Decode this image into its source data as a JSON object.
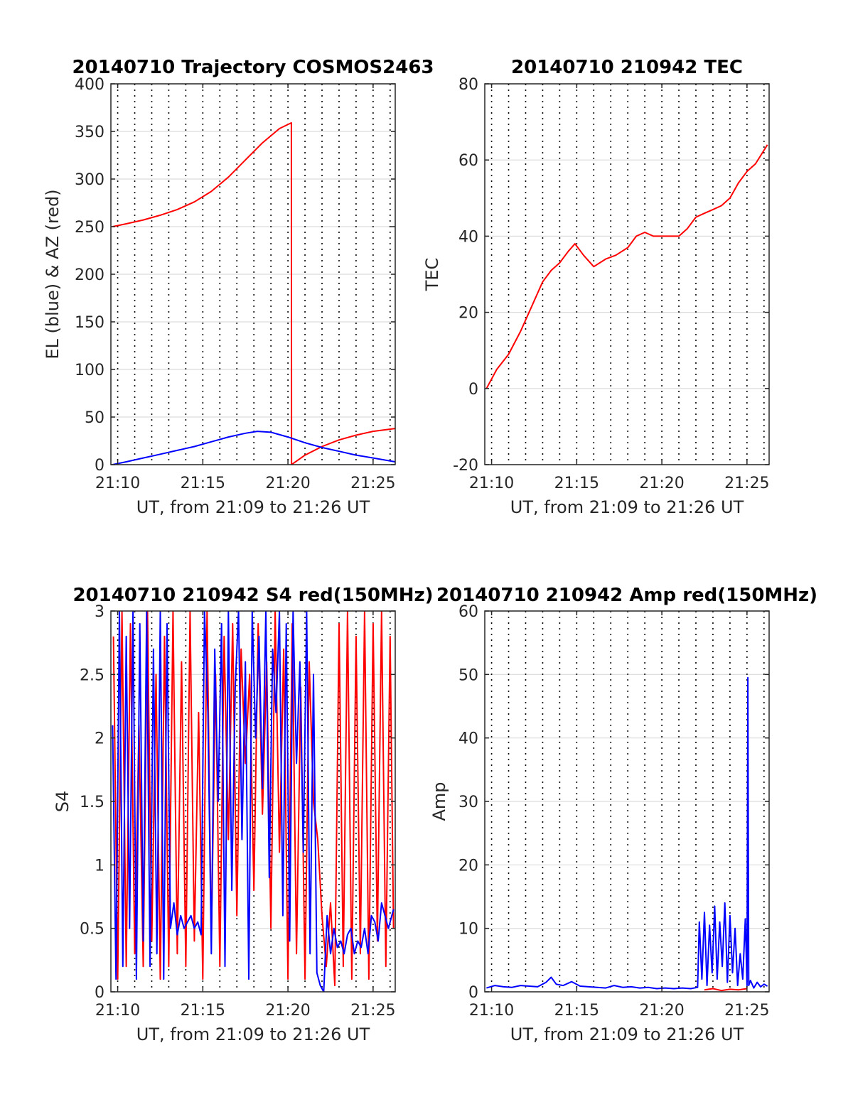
{
  "chart_data": [
    {
      "type": "line",
      "title": "20140710 Trajectory COSMOS2463",
      "xlabel": "UT, from 21:09 to 21:26 UT",
      "ylabel": "EL (blue) & AZ (red)",
      "xlim": [
        9.6,
        26.3
      ],
      "ylim": [
        0,
        400
      ],
      "xticks": [
        10,
        15,
        20,
        25
      ],
      "xticklabels": [
        "21:10",
        "21:15",
        "21:20",
        "21:25"
      ],
      "yticks": [
        0,
        50,
        100,
        150,
        200,
        250,
        300,
        350,
        400
      ],
      "yticklabels": [
        "0",
        "50",
        "100",
        "150",
        "200",
        "250",
        "300",
        "350",
        "400"
      ],
      "grid": true,
      "minute_lines": true,
      "series": [
        {
          "color": "#ff0000",
          "x": [
            9.7,
            10.5,
            11.5,
            12.5,
            13.5,
            14.5,
            15.5,
            16.5,
            17.5,
            18.5,
            19.5,
            20.2,
            20.21,
            21,
            22,
            23,
            24,
            25,
            26.3
          ],
          "values": [
            250,
            253,
            257,
            262,
            268,
            276,
            287,
            302,
            320,
            338,
            353,
            359,
            0,
            10,
            19,
            26,
            31,
            35,
            38
          ]
        },
        {
          "color": "#0000ff",
          "x": [
            9.7,
            10.5,
            11.5,
            12.5,
            13.5,
            14.5,
            15.5,
            16.5,
            17.5,
            18.2,
            19,
            20,
            21,
            22,
            23,
            24,
            25,
            26.3
          ],
          "values": [
            0,
            3,
            7,
            11,
            15,
            19,
            24,
            29,
            33,
            35,
            34,
            29,
            23,
            18,
            14,
            10,
            7,
            3
          ]
        }
      ]
    },
    {
      "type": "line",
      "title": "20140710 210942 TEC",
      "xlabel": "UT, from 21:09 to 21:26 UT",
      "ylabel": "TEC",
      "xlim": [
        9.6,
        26.3
      ],
      "ylim": [
        -20,
        80
      ],
      "xticks": [
        10,
        15,
        20,
        25
      ],
      "xticklabels": [
        "21:10",
        "21:15",
        "21:20",
        "21:25"
      ],
      "yticks": [
        -20,
        0,
        20,
        40,
        60,
        80
      ],
      "yticklabels": [
        "-20",
        "0",
        "20",
        "40",
        "60",
        "80"
      ],
      "grid": true,
      "minute_lines": true,
      "series": [
        {
          "color": "#ff0000",
          "x": [
            9.7,
            10.3,
            11,
            11.7,
            12.3,
            13,
            13.5,
            14,
            14.5,
            14.9,
            15.4,
            16,
            16.7,
            17.3,
            18,
            18.5,
            19,
            19.5,
            20,
            20.5,
            21,
            21.5,
            22,
            22.5,
            23,
            23.5,
            24,
            24.5,
            25,
            25.5,
            26.2
          ],
          "values": [
            0,
            5,
            9,
            15,
            21,
            28,
            31,
            33,
            36,
            38,
            35,
            32,
            34,
            35,
            37,
            40,
            41,
            40,
            40,
            40,
            40,
            42,
            45,
            46,
            47,
            48,
            50,
            54,
            57,
            59,
            64
          ]
        }
      ]
    },
    {
      "type": "line",
      "title": "20140710 210942 S4 red(150MHz)",
      "xlabel": "UT, from 21:09 to 21:26 UT",
      "ylabel": "S4",
      "xlim": [
        9.6,
        26.3
      ],
      "ylim": [
        0,
        3
      ],
      "xticks": [
        10,
        15,
        20,
        25
      ],
      "xticklabels": [
        "21:10",
        "21:15",
        "21:20",
        "21:25"
      ],
      "yticks": [
        0,
        0.5,
        1,
        1.5,
        2,
        2.5,
        3
      ],
      "yticklabels": [
        "0",
        "0.5",
        "1",
        "1.5",
        "2",
        "2.5",
        "3"
      ],
      "grid": true,
      "minute_lines": true,
      "series": [
        {
          "color": "#ff0000",
          "x": [
            9.75,
            10.0,
            10.25,
            10.5,
            10.75,
            11.0,
            11.25,
            11.5,
            11.75,
            12.0,
            12.25,
            12.5,
            12.75,
            13.0,
            13.25,
            13.5,
            13.75,
            14.0,
            14.25,
            14.5,
            14.75,
            15.0,
            15.25,
            15.5,
            15.75,
            16.0,
            16.25,
            16.5,
            16.75,
            17.0,
            17.25,
            17.5,
            17.75,
            18.0,
            18.25,
            18.5,
            18.75,
            19.0,
            19.25,
            19.5,
            19.75,
            20.0,
            20.25,
            20.5,
            20.75,
            21.0,
            21.25,
            21.5,
            21.75,
            22.0,
            22.25,
            22.5,
            22.75,
            23.0,
            23.25,
            23.5,
            23.75,
            24.0,
            24.25,
            24.5,
            24.75,
            25.0,
            25.25,
            25.5,
            25.75,
            26.0,
            26.2
          ],
          "values": [
            2.8,
            0.1,
            3.0,
            0.2,
            2.9,
            0.3,
            2.1,
            0.2,
            3.0,
            0.4,
            2.5,
            0.1,
            2.8,
            0.2,
            3.0,
            0.3,
            2.6,
            0.2,
            3.0,
            0.4,
            2.2,
            0.1,
            3.0,
            0.4,
            2.5,
            0.2,
            2.8,
            1.2,
            2.9,
            0.6,
            2.7,
            1.8,
            2.5,
            0.8,
            2.9,
            1.4,
            2.6,
            0.5,
            3.0,
            1.1,
            2.7,
            0.1,
            2.9,
            0.3,
            2.4,
            0.1,
            2.6,
            1.5,
            1.2,
            0.6,
            0.2,
            0.7,
            0.05,
            2.9,
            0.2,
            3.0,
            0.1,
            2.8,
            0.3,
            3.0,
            0.1,
            2.9,
            0.4,
            3.0,
            0.2,
            2.8,
            0.5
          ]
        },
        {
          "color": "#0000ff",
          "x": [
            9.7,
            9.9,
            10.1,
            10.3,
            10.5,
            10.7,
            10.9,
            11.1,
            11.3,
            11.5,
            11.7,
            11.9,
            12.1,
            12.3,
            12.5,
            12.7,
            12.9,
            13.1,
            13.3,
            13.5,
            13.7,
            13.9,
            14.1,
            14.3,
            14.5,
            14.7,
            14.9,
            15.1,
            15.3,
            15.5,
            15.7,
            15.9,
            16.1,
            16.3,
            16.5,
            16.7,
            16.9,
            17.1,
            17.3,
            17.5,
            17.7,
            17.9,
            18.1,
            18.3,
            18.5,
            18.7,
            18.9,
            19.1,
            19.3,
            19.5,
            19.7,
            19.9,
            20.1,
            20.3,
            20.5,
            20.7,
            20.9,
            21.1,
            21.3,
            21.5,
            21.7,
            21.9,
            22.1,
            22.3,
            22.5,
            22.7,
            22.9,
            23.1,
            23.3,
            23.5,
            23.7,
            23.9,
            24.1,
            24.3,
            24.5,
            24.7,
            24.9,
            25.1,
            25.3,
            25.5,
            25.7,
            25.9,
            26.2
          ],
          "values": [
            2.1,
            0.1,
            3.0,
            0.2,
            2.8,
            0.5,
            3.0,
            0.1,
            2.9,
            0.4,
            3.0,
            0.2,
            2.7,
            0.3,
            3.0,
            0.1,
            2.9,
            0.5,
            0.7,
            0.45,
            0.6,
            0.5,
            0.55,
            0.6,
            0.5,
            0.55,
            0.45,
            3.0,
            2.2,
            0.3,
            2.7,
            1.5,
            2.9,
            0.2,
            3.0,
            0.8,
            2.4,
            3.0,
            1.2,
            2.6,
            0.1,
            3.0,
            2.0,
            2.8,
            1.6,
            3.0,
            0.9,
            2.7,
            2.2,
            3.0,
            0.6,
            2.9,
            0.4,
            3.0,
            1.8,
            2.6,
            1.1,
            3.0,
            0.3,
            2.5,
            0.15,
            0.05,
            0.0,
            0.6,
            0.3,
            0.5,
            0.35,
            0.4,
            0.3,
            0.45,
            0.5,
            0.3,
            0.4,
            0.35,
            0.5,
            0.3,
            0.6,
            0.55,
            0.4,
            0.7,
            0.6,
            0.5,
            0.65
          ]
        }
      ]
    },
    {
      "type": "line",
      "title": "20140710 210942 Amp red(150MHz)",
      "xlabel": "UT, from 21:09 to 21:26 UT",
      "ylabel": "Amp",
      "xlim": [
        9.6,
        26.3
      ],
      "ylim": [
        0,
        60
      ],
      "xticks": [
        10,
        15,
        20,
        25
      ],
      "xticklabels": [
        "21:10",
        "21:15",
        "21:20",
        "21:25"
      ],
      "yticks": [
        0,
        10,
        20,
        30,
        40,
        50,
        60
      ],
      "yticklabels": [
        "0",
        "10",
        "20",
        "30",
        "40",
        "50",
        "60"
      ],
      "grid": true,
      "minute_lines": true,
      "series": [
        {
          "color": "#ff0000",
          "x": [
            22.5,
            23.0,
            23.5,
            24.0,
            24.5,
            25.0
          ],
          "values": [
            0.3,
            0.5,
            0.2,
            0.4,
            0.3,
            0.5
          ]
        },
        {
          "color": "#0000ff",
          "x": [
            9.7,
            10.2,
            10.7,
            11.2,
            11.7,
            12.2,
            12.7,
            13.2,
            13.5,
            13.8,
            14.2,
            14.7,
            15.2,
            15.7,
            16.2,
            16.7,
            17.2,
            17.7,
            18.2,
            18.7,
            19.2,
            19.7,
            20.2,
            20.7,
            21.2,
            21.7,
            22.1,
            22.2,
            22.35,
            22.5,
            22.65,
            22.8,
            22.95,
            23.1,
            23.25,
            23.4,
            23.55,
            23.7,
            23.85,
            24.0,
            24.15,
            24.3,
            24.45,
            24.6,
            24.75,
            24.9,
            25.0,
            25.05,
            25.1,
            25.2,
            25.4,
            25.6,
            25.8,
            26.0,
            26.2
          ],
          "values": [
            0.6,
            1.0,
            0.8,
            0.7,
            1.0,
            0.9,
            0.8,
            1.5,
            2.3,
            1.2,
            1.0,
            1.6,
            0.9,
            0.8,
            0.7,
            0.6,
            1.0,
            0.7,
            0.8,
            0.6,
            0.7,
            0.5,
            0.6,
            0.5,
            0.6,
            0.5,
            0.7,
            11.0,
            2.0,
            12.5,
            1.0,
            10.5,
            3.0,
            13.5,
            2.0,
            11.0,
            4.0,
            14.0,
            1.5,
            12.0,
            3.0,
            10.0,
            1.0,
            6.0,
            2.0,
            11.5,
            1.0,
            49.5,
            1.0,
            1.8,
            0.6,
            1.5,
            0.8,
            1.2,
            0.9
          ]
        }
      ]
    }
  ]
}
